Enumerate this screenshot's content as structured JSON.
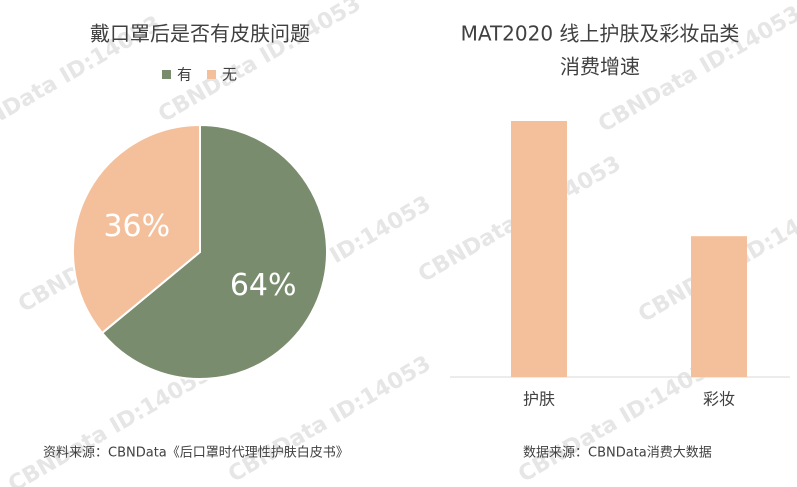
{
  "watermark": "CBNData ID:14053",
  "chart_data": [
    {
      "type": "pie",
      "title": "戴口罩后是否有皮肤问题",
      "series": [
        {
          "name": "有",
          "color": "#7a8c6e",
          "values": [
            64
          ],
          "value_labels": [
            "64%"
          ]
        },
        {
          "name": "无",
          "color": "#f4c09b",
          "values": [
            36
          ],
          "value_labels": [
            "36%"
          ]
        }
      ],
      "legend": "top",
      "source": "资料来源：CBNData《后口罩时代理性护肤白皮书》"
    },
    {
      "type": "bar",
      "title": [
        "MAT2020 线上护肤及彩妆品类",
        "消费增速"
      ],
      "categories": [
        "护肤",
        "彩妆"
      ],
      "values": [
        100,
        55
      ],
      "color": "#f4c09b",
      "source": "数据来源：CBNData消费大数据"
    }
  ]
}
